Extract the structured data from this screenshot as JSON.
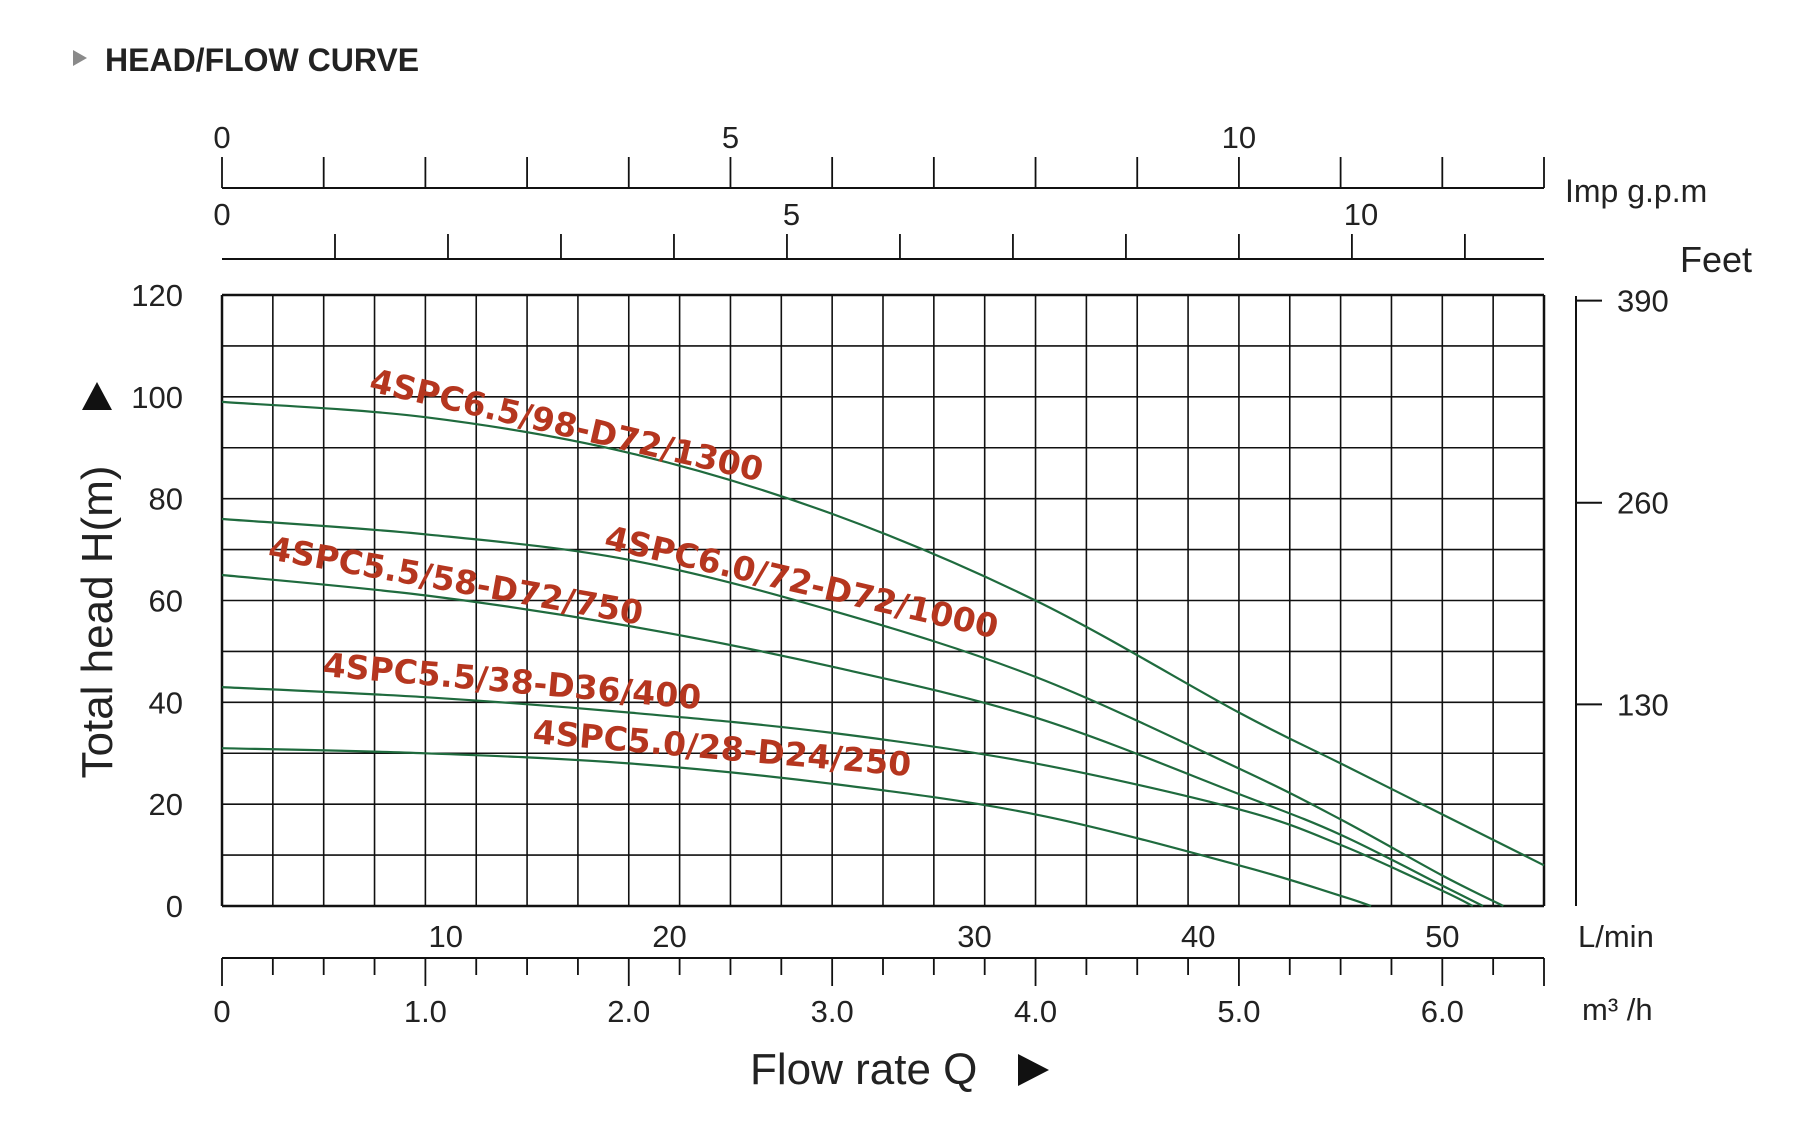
{
  "chart_data": {
    "type": "line",
    "title": "HEAD/FLOW CURVE",
    "title_color": "#1f5aa6",
    "xlabel": "Flow rate Q",
    "ylabel": "Total head H(m)",
    "x_unit": "m³ /h",
    "xlim": [
      0,
      6.5
    ],
    "ylim": [
      0,
      120
    ],
    "x_ticks": [
      "0",
      "1.0",
      "2.0",
      "3.0",
      "4.0",
      "5.0",
      "6.0"
    ],
    "y_ticks": [
      "0",
      "20",
      "40",
      "60",
      "80",
      "100",
      "120"
    ],
    "grid": true,
    "secondary_axes": {
      "lpm": {
        "unit": "L/min",
        "ticks": [
          {
            "label": "10",
            "value": 1.1
          },
          {
            "label": "20",
            "value": 2.2
          },
          {
            "label": "30",
            "value": 3.7
          },
          {
            "label": "40",
            "value": 4.8
          },
          {
            "label": "50",
            "value": 6.0
          }
        ]
      },
      "imp_gpm": {
        "unit": "Imp g.p.m",
        "ticks": [
          {
            "label": "0",
            "value": 0
          },
          {
            "label": "5",
            "value": 2.5
          },
          {
            "label": "10",
            "value": 5.0
          }
        ]
      },
      "feet": {
        "unit": "Feet",
        "ticks": [
          {
            "label": "0",
            "value": 0
          },
          {
            "label": "5",
            "value": 2.8
          },
          {
            "label": "10",
            "value": 5.6
          }
        ]
      },
      "head_ft": {
        "ticks": [
          {
            "label": "390",
            "head_m": 118.9
          },
          {
            "label": "260",
            "head_m": 79.2
          },
          {
            "label": "130",
            "head_m": 39.6
          }
        ]
      }
    },
    "series": [
      {
        "name": "4SPC6.5/98-D72/1300",
        "color": "#1f6b3e",
        "x": [
          0,
          1.0,
          2.0,
          3.0,
          4.0,
          5.0,
          5.5,
          6.0,
          6.5
        ],
        "y": [
          99,
          96,
          89,
          77,
          60,
          38,
          28,
          18,
          8
        ]
      },
      {
        "name": "4SPC6.0/72-D72/1000",
        "color": "#1f6b3e",
        "x": [
          0,
          1.0,
          2.0,
          3.0,
          4.0,
          5.0,
          5.5,
          6.0,
          6.3
        ],
        "y": [
          76,
          73,
          68,
          58,
          45,
          27,
          17,
          6,
          0
        ]
      },
      {
        "name": "4SPC5.5/58-D72/750",
        "color": "#1f6b3e",
        "x": [
          0,
          1.0,
          2.0,
          3.0,
          4.0,
          5.0,
          5.5,
          6.0,
          6.2
        ],
        "y": [
          65,
          61,
          55,
          47,
          37,
          22,
          14,
          4,
          0
        ]
      },
      {
        "name": "4SPC5.5/38-D36/400",
        "color": "#1f6b3e",
        "x": [
          0,
          1.0,
          2.0,
          3.0,
          4.0,
          5.0,
          5.5,
          6.0,
          6.15
        ],
        "y": [
          43,
          41,
          38,
          34,
          28,
          19,
          12,
          3,
          0
        ]
      },
      {
        "name": "4SPC5.0/28-D24/250",
        "color": "#1f6b3e",
        "x": [
          0,
          1.0,
          2.0,
          3.0,
          4.0,
          5.0,
          5.5,
          5.65
        ],
        "y": [
          31,
          30,
          28,
          24,
          18,
          8,
          2,
          0
        ]
      }
    ]
  }
}
